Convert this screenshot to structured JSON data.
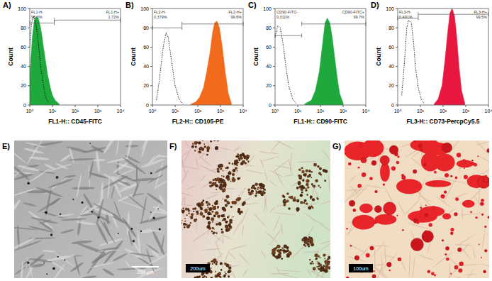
{
  "chart_data": [
    {
      "type": "histogram",
      "title": "A)",
      "x_label": "FL1-H:: CD45-FITC",
      "y_label": "Count",
      "log": "x",
      "xlim": [
        1,
        10000
      ],
      "xticks": [
        {
          "value": 1,
          "label": "10⁰"
        },
        {
          "value": 10,
          "label": "10¹"
        },
        {
          "value": 100,
          "label": "10²"
        },
        {
          "value": 1000,
          "label": "10³"
        },
        {
          "value": 10000,
          "label": "10⁴"
        }
      ],
      "ylim": [
        0,
        100
      ],
      "yticks": [
        0,
        20,
        40,
        60,
        80,
        100
      ],
      "series": [
        {
          "type": "area",
          "color": "#1fa83c",
          "x": [
            1,
            1.3,
            1.6,
            2,
            2.5,
            3,
            3.5,
            4,
            5,
            6,
            8,
            10,
            13,
            20
          ],
          "values": [
            30,
            70,
            88,
            92,
            88,
            80,
            70,
            60,
            45,
            32,
            18,
            10,
            5,
            1
          ]
        },
        {
          "type": "line",
          "color": "#000000",
          "line_style": "dotted",
          "x": [
            1,
            1.2,
            1.5,
            2,
            2.5,
            3,
            4,
            5,
            7
          ],
          "values": [
            60,
            85,
            92,
            80,
            60,
            40,
            20,
            8,
            2
          ]
        }
      ],
      "gates": [
        {
          "name": "FL1-H-",
          "value": 98.3,
          "value_label": "98.3%",
          "xlim": [
            1,
            12
          ],
          "y": 85
        },
        {
          "name": "FL1-H+",
          "value": 1.72,
          "value_label": "1.72%",
          "xlim": [
            12,
            10000
          ],
          "y": 88
        }
      ]
    },
    {
      "type": "histogram",
      "title": "B)",
      "x_label": "FL2-H:: CD105-PE",
      "y_label": "Count",
      "log": "x",
      "xlim": [
        1,
        10000
      ],
      "xticks": [
        {
          "value": 1,
          "label": "10⁰"
        },
        {
          "value": 10,
          "label": "10¹"
        },
        {
          "value": 100,
          "label": "10²"
        },
        {
          "value": 1000,
          "label": "10³"
        },
        {
          "value": 10000,
          "label": "10⁴"
        }
      ],
      "ylim": [
        0,
        100
      ],
      "yticks": [
        0,
        20,
        40,
        60,
        80,
        100
      ],
      "series": [
        {
          "type": "area",
          "color": "#f26a1b",
          "x": [
            50,
            80,
            120,
            180,
            250,
            350,
            450,
            550,
            700,
            900,
            1200,
            1600,
            2200,
            3000
          ],
          "values": [
            1,
            3,
            8,
            18,
            35,
            55,
            75,
            85,
            87,
            80,
            60,
            35,
            12,
            2
          ]
        },
        {
          "type": "line",
          "color": "#000000",
          "line_style": "dotted",
          "x": [
            1.5,
            2,
            3,
            4,
            5,
            7,
            10,
            15,
            22
          ],
          "values": [
            5,
            25,
            60,
            75,
            70,
            45,
            20,
            6,
            1
          ]
        }
      ],
      "gates": [
        {
          "name": "FL2-H-",
          "value": 0.379,
          "value_label": "0.379%",
          "xlim": [
            1,
            20
          ],
          "y": 80
        },
        {
          "name": "FL2-H+",
          "value": 99.6,
          "value_label": "99.6%",
          "xlim": [
            20,
            10000
          ],
          "y": 84
        }
      ]
    },
    {
      "type": "histogram",
      "title": "C)",
      "x_label": "FL1-H:: CD90-FITC",
      "y_label": "Count",
      "log": "x",
      "xlim": [
        1,
        10000
      ],
      "xticks": [
        {
          "value": 1,
          "label": "10⁰"
        },
        {
          "value": 10,
          "label": "10¹"
        },
        {
          "value": 100,
          "label": "10²"
        },
        {
          "value": 1000,
          "label": "10³"
        },
        {
          "value": 10000,
          "label": "10⁴"
        }
      ],
      "ylim": [
        0,
        100
      ],
      "yticks": [
        0,
        20,
        40,
        60,
        80,
        100
      ],
      "series": [
        {
          "type": "area",
          "color": "#1fa83c",
          "x": [
            20,
            40,
            60,
            90,
            120,
            160,
            200,
            260,
            330,
            420,
            550,
            700,
            1000
          ],
          "values": [
            1,
            5,
            15,
            35,
            60,
            85,
            90,
            85,
            70,
            50,
            28,
            12,
            2
          ]
        },
        {
          "type": "line",
          "color": "#000000",
          "line_style": "dotted",
          "x": [
            1,
            1.3,
            1.7,
            2.2,
            3,
            4,
            6,
            9
          ],
          "values": [
            70,
            82,
            80,
            65,
            40,
            20,
            6,
            1
          ]
        }
      ],
      "gates": [
        {
          "name": "CD90-FITC-",
          "value": 0.311,
          "value_label": "0.311%",
          "xlim": [
            1,
            15
          ],
          "y": 72
        },
        {
          "name": "CD90-FITC+",
          "value": 99.7,
          "value_label": "99.7%",
          "xlim": [
            15,
            10000
          ],
          "y": 84
        }
      ]
    },
    {
      "type": "histogram",
      "title": "D)",
      "x_label": "FL3-H:: CD73-PercpCy5.5",
      "y_label": "Count",
      "log": "x",
      "xlim": [
        1,
        10000
      ],
      "xticks": [
        {
          "value": 1,
          "label": "10⁰"
        },
        {
          "value": 10,
          "label": "10¹"
        },
        {
          "value": 100,
          "label": "10²"
        },
        {
          "value": 1000,
          "label": "10³"
        },
        {
          "value": 10000,
          "label": "10⁴"
        }
      ],
      "ylim": [
        0,
        100
      ],
      "yticks": [
        0,
        20,
        40,
        60,
        80,
        100
      ],
      "series": [
        {
          "type": "area",
          "color": "#e8173f",
          "x": [
            40,
            60,
            90,
            120,
            160,
            200,
            250,
            320,
            400,
            500,
            650,
            900
          ],
          "values": [
            1,
            6,
            20,
            45,
            75,
            95,
            100,
            92,
            70,
            40,
            15,
            2
          ]
        },
        {
          "type": "line",
          "color": "#000000",
          "line_style": "dotted",
          "x": [
            1.5,
            2,
            2.5,
            3,
            4,
            5,
            6,
            8,
            11,
            15
          ],
          "values": [
            10,
            45,
            80,
            88,
            85,
            65,
            40,
            18,
            6,
            1
          ]
        }
      ],
      "gates": [
        {
          "name": "FL3-H-",
          "value": 0.491,
          "value_label": "0.491%",
          "xlim": [
            1,
            8
          ],
          "y": 90
        },
        {
          "name": "FL3-H+",
          "value": 99.5,
          "value_label": "99.5%",
          "xlim": [
            8,
            10000
          ],
          "y": 94
        }
      ]
    }
  ],
  "images": [
    {
      "label": "E)",
      "scale_bar": "200 µm"
    },
    {
      "label": "F)",
      "scale_bar": "200um"
    },
    {
      "label": "G)",
      "scale_bar": "100um"
    }
  ]
}
